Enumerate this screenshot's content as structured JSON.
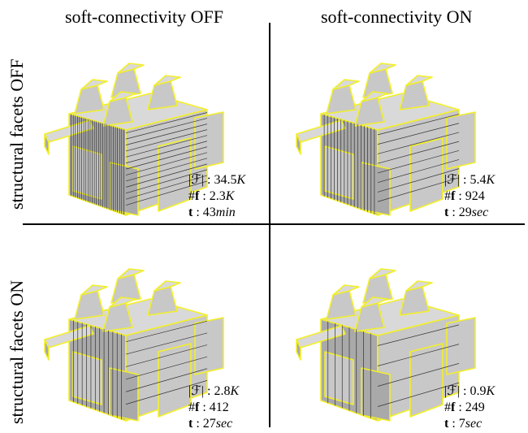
{
  "columns": {
    "left": "soft-connectivity OFF",
    "right": "soft-connectivity ON"
  },
  "rows": {
    "top": "structural facets OFF",
    "bottom": "structural facets ON"
  },
  "symbols": {
    "faces": "|ℱ|",
    "facets": "#",
    "facets_bold": "f",
    "time": "t",
    "sep": " : "
  },
  "panels": {
    "top_left": {
      "faces_num": "34.5",
      "faces_unit": "K",
      "facets": "2.3",
      "facets_unit": "K",
      "time_num": "43",
      "time_unit": "min"
    },
    "top_right": {
      "faces_num": "5.4",
      "faces_unit": "K",
      "facets": "924",
      "facets_unit": "",
      "time_num": "29",
      "time_unit": "sec"
    },
    "bottom_left": {
      "faces_num": "2.8",
      "faces_unit": "K",
      "facets": "412",
      "facets_unit": "",
      "time_num": "27",
      "time_unit": "sec"
    },
    "bottom_right": {
      "faces_num": "0.9",
      "faces_unit": "K",
      "facets": "249",
      "facets_unit": "",
      "time_num": "7",
      "time_unit": "sec"
    }
  },
  "colors": {
    "surface": "#c8c8c8",
    "surface_dark": "#a9a9a9",
    "surface_light": "#d9d9d9",
    "edges": "#f3ef2a",
    "fine_lines": "#333333"
  }
}
